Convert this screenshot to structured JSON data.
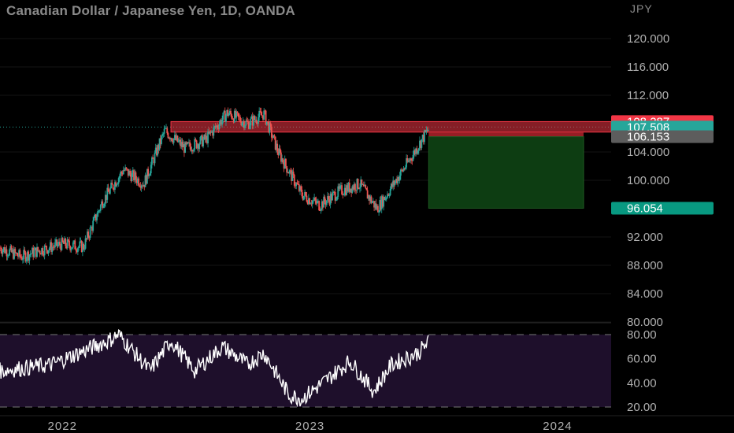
{
  "header": {
    "title": "Canadian Dollar / Japanese Yen, 1D, OANDA",
    "unit": "JPY"
  },
  "price_axis": {
    "ticks": [
      {
        "label": "120.000",
        "value": 120
      },
      {
        "label": "116.000",
        "value": 116
      },
      {
        "label": "112.000",
        "value": 112
      },
      {
        "label": "104.000",
        "value": 104
      },
      {
        "label": "100.000",
        "value": 100
      },
      {
        "label": "92.000",
        "value": 92
      },
      {
        "label": "88.000",
        "value": 88
      },
      {
        "label": "84.000",
        "value": 84
      },
      {
        "label": "80.000",
        "value": 80
      }
    ]
  },
  "price_tags": [
    {
      "label": "108.287",
      "value": 108.287,
      "color": "#f23645"
    },
    {
      "label": "107.508",
      "value": 107.508,
      "color": "#26a69a"
    },
    {
      "label": "106.153",
      "value": 106.153,
      "color": "#5d5d5d"
    },
    {
      "label": "96.054",
      "value": 96.054,
      "color": "#089981"
    }
  ],
  "rsi_axis": {
    "ticks": [
      {
        "label": "80.00",
        "value": 80
      },
      {
        "label": "60.00",
        "value": 60
      },
      {
        "label": "40.00",
        "value": 40
      },
      {
        "label": "20.00",
        "value": 20
      }
    ]
  },
  "time_axis": {
    "labels": [
      {
        "label": "2022",
        "date": "2022-01-01"
      },
      {
        "label": "2023",
        "date": "2023-01-01"
      },
      {
        "label": "2024",
        "date": "2024-01-01"
      }
    ]
  },
  "colors": {
    "up": "#26a69a",
    "down": "#ef5350",
    "rsi_line": "#ffffff",
    "rsi_band": "#1e0f2b",
    "stop_zone": "#f23645",
    "target_zone": "#0d3d12"
  },
  "chart_data": {
    "type": "candlestick",
    "symbol": "Canadian Dollar / Japanese Yen",
    "interval": "1D",
    "source": "OANDA",
    "price_range": [
      80,
      122
    ],
    "close_path": [
      {
        "date": "2021-10-01",
        "close": 90.5
      },
      {
        "date": "2021-11-01",
        "close": 89.2
      },
      {
        "date": "2021-12-01",
        "close": 90.2
      },
      {
        "date": "2022-01-01",
        "close": 91.0
      },
      {
        "date": "2022-02-01",
        "close": 90.6
      },
      {
        "date": "2022-03-01",
        "close": 97.0
      },
      {
        "date": "2022-04-01",
        "close": 101.5
      },
      {
        "date": "2022-05-01",
        "close": 99.5
      },
      {
        "date": "2022-06-01",
        "close": 107.0
      },
      {
        "date": "2022-07-01",
        "close": 104.5
      },
      {
        "date": "2022-08-01",
        "close": 105.8
      },
      {
        "date": "2022-09-01",
        "close": 109.5
      },
      {
        "date": "2022-10-01",
        "close": 108.0
      },
      {
        "date": "2022-10-25",
        "close": 109.4
      },
      {
        "date": "2022-11-15",
        "close": 104.0
      },
      {
        "date": "2022-12-20",
        "close": 98.0
      },
      {
        "date": "2023-01-15",
        "close": 96.5
      },
      {
        "date": "2023-02-15",
        "close": 98.5
      },
      {
        "date": "2023-03-15",
        "close": 99.5
      },
      {
        "date": "2023-04-10",
        "close": 96.0
      },
      {
        "date": "2023-05-01",
        "close": 99.0
      },
      {
        "date": "2023-06-01",
        "close": 103.5
      },
      {
        "date": "2023-06-25",
        "close": 107.3
      }
    ],
    "trade_zones": {
      "stop_loss": {
        "top": 108.287,
        "bottom": 106.8
      },
      "entry": 106.153,
      "take_profit": 96.054
    },
    "rsi": {
      "range": [
        15,
        85
      ],
      "upper_band": 80,
      "lower_band": 20,
      "path": [
        {
          "date": "2021-10-01",
          "value": 50
        },
        {
          "date": "2021-12-15",
          "value": 55
        },
        {
          "date": "2022-03-10",
          "value": 75
        },
        {
          "date": "2022-03-25",
          "value": 80
        },
        {
          "date": "2022-05-10",
          "value": 50
        },
        {
          "date": "2022-06-10",
          "value": 75
        },
        {
          "date": "2022-07-15",
          "value": 50
        },
        {
          "date": "2022-08-25",
          "value": 70
        },
        {
          "date": "2022-10-01",
          "value": 55
        },
        {
          "date": "2022-10-25",
          "value": 65
        },
        {
          "date": "2022-12-01",
          "value": 30
        },
        {
          "date": "2022-12-20",
          "value": 27
        },
        {
          "date": "2023-01-20",
          "value": 40
        },
        {
          "date": "2023-03-01",
          "value": 58
        },
        {
          "date": "2023-04-05",
          "value": 33
        },
        {
          "date": "2023-05-01",
          "value": 55
        },
        {
          "date": "2023-06-10",
          "value": 65
        },
        {
          "date": "2023-06-25",
          "value": 74
        }
      ]
    }
  }
}
